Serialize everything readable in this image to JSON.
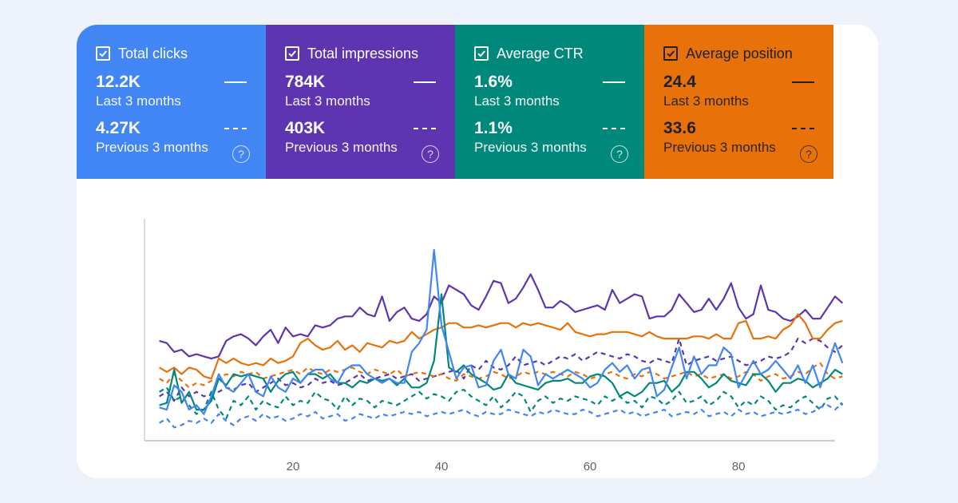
{
  "metrics": [
    {
      "id": "clicks",
      "label": "Total clicks",
      "color": "#4285f4",
      "current_value": "12.2K",
      "current_period": "Last 3 months",
      "previous_value": "4.27K",
      "previous_period": "Previous 3 months",
      "checked": true
    },
    {
      "id": "impressions",
      "label": "Total impressions",
      "color": "#5e35b1",
      "current_value": "784K",
      "current_period": "Last 3 months",
      "previous_value": "403K",
      "previous_period": "Previous 3 months",
      "checked": true
    },
    {
      "id": "ctr",
      "label": "Average CTR",
      "color": "#00897b",
      "current_value": "1.6%",
      "current_period": "Last 3 months",
      "previous_value": "1.1%",
      "previous_period": "Previous 3 months",
      "checked": true
    },
    {
      "id": "position",
      "label": "Average position",
      "color": "#e8710a",
      "current_value": "24.4",
      "current_period": "Last 3 months",
      "previous_value": "33.6",
      "previous_period": "Previous 3 months",
      "checked": true
    }
  ],
  "help_glyph": "?",
  "chart_data": {
    "type": "line",
    "xlim": [
      0,
      93
    ],
    "ylim": [
      0,
      100
    ],
    "x_ticks": [
      20,
      40,
      60,
      80
    ],
    "series": [
      {
        "name": "Total impressions (Last 3 months)",
        "color": "#5e35b1",
        "dash": false,
        "values": [
          45,
          44,
          40,
          41,
          38,
          39,
          38,
          37,
          38,
          45,
          47,
          48,
          46,
          43,
          47,
          50,
          44,
          51,
          47,
          48,
          47,
          52,
          51,
          52,
          55,
          56,
          56,
          60,
          57,
          56,
          65,
          54,
          58,
          60,
          55,
          54,
          57,
          65,
          62,
          70,
          68,
          66,
          61,
          59,
          65,
          72,
          71,
          62,
          64,
          69,
          75,
          68,
          60,
          60,
          63,
          61,
          58,
          59,
          60,
          61,
          59,
          68,
          62,
          64,
          66,
          65,
          55,
          56,
          56,
          59,
          66,
          62,
          58,
          59,
          64,
          59,
          64,
          71,
          60,
          55,
          57,
          70,
          59,
          58,
          55,
          54,
          56,
          59,
          55,
          55,
          60,
          65,
          62
        ]
      },
      {
        "name": "Average position (Last 3 months)",
        "color": "#e8710a",
        "dash": false,
        "values": [
          33,
          31,
          33,
          30,
          33,
          32,
          29,
          28,
          37,
          35,
          37,
          35,
          34,
          35,
          34,
          37,
          35,
          36,
          38,
          44,
          46,
          43,
          41,
          42,
          45,
          41,
          43,
          40,
          44,
          43,
          42,
          45,
          44,
          45,
          49,
          46,
          48,
          50,
          51,
          53,
          53,
          51,
          51,
          52,
          51,
          52,
          53,
          53,
          51,
          53,
          52,
          53,
          52,
          51,
          50,
          53,
          49,
          48,
          47,
          48,
          48,
          49,
          49,
          49,
          48,
          47,
          49,
          47,
          46,
          46,
          46,
          46,
          47,
          47,
          46,
          48,
          46,
          46,
          53,
          54,
          46,
          46,
          47,
          46,
          50,
          52,
          57,
          53,
          46,
          46,
          50,
          53,
          54
        ]
      },
      {
        "name": "Average CTR (Last 3 months)",
        "color": "#00897b",
        "dash": false,
        "values": [
          16,
          17,
          32,
          17,
          22,
          14,
          14,
          18,
          28,
          25,
          30,
          29,
          30,
          29,
          28,
          22,
          27,
          30,
          31,
          26,
          30,
          30,
          28,
          30,
          26,
          26,
          24,
          27,
          26,
          28,
          27,
          28,
          25,
          28,
          24,
          24,
          26,
          36,
          66,
          33,
          31,
          34,
          30,
          28,
          26,
          23,
          24,
          30,
          26,
          25,
          24,
          23,
          26,
          27,
          27,
          28,
          26,
          26,
          29,
          30,
          29,
          26,
          20,
          22,
          20,
          22,
          26,
          26,
          27,
          22,
          25,
          31,
          31,
          28,
          24,
          26,
          30,
          27,
          26,
          25,
          30,
          30,
          27,
          22,
          26,
          26,
          28,
          27,
          24,
          26,
          28,
          32,
          30
        ]
      },
      {
        "name": "Total clicks (Last 3 months)",
        "color": "#4285f4",
        "dash": false,
        "values": [
          15,
          14,
          25,
          22,
          14,
          16,
          12,
          20,
          30,
          24,
          22,
          26,
          30,
          22,
          20,
          29,
          24,
          22,
          28,
          26,
          30,
          32,
          32,
          28,
          26,
          32,
          34,
          34,
          30,
          28,
          26,
          28,
          26,
          26,
          40,
          44,
          50,
          86,
          52,
          40,
          28,
          33,
          34,
          24,
          25,
          36,
          41,
          30,
          28,
          41,
          38,
          25,
          30,
          28,
          30,
          32,
          30,
          28,
          24,
          26,
          32,
          35,
          31,
          34,
          28,
          32,
          33,
          20,
          23,
          33,
          42,
          28,
          38,
          30,
          34,
          34,
          42,
          39,
          24,
          30,
          36,
          30,
          32,
          36,
          32,
          28,
          34,
          26,
          34,
          24,
          34,
          44,
          35
        ]
      },
      {
        "name": "Total impressions (Previous 3 months)",
        "color": "#5e35b1",
        "dash": true,
        "values": [
          20,
          22,
          18,
          24,
          20,
          22,
          20,
          21,
          22,
          24,
          23,
          25,
          26,
          22,
          24,
          26,
          28,
          25,
          26,
          24,
          25,
          28,
          26,
          27,
          25,
          26,
          28,
          30,
          27,
          28,
          29,
          30,
          28,
          29,
          30,
          27,
          28,
          29,
          30,
          31,
          32,
          28,
          34,
          32,
          36,
          33,
          32,
          34,
          38,
          34,
          35,
          36,
          34,
          36,
          38,
          37,
          39,
          36,
          38,
          40,
          39,
          38,
          37,
          39,
          38,
          36,
          35,
          37,
          36,
          35,
          46,
          34,
          36,
          37,
          38,
          36,
          37,
          38,
          36,
          34,
          35,
          36,
          38,
          37,
          38,
          40,
          46,
          44,
          46,
          45,
          42,
          40,
          43
        ]
      },
      {
        "name": "Average position (Previous 3 months)",
        "color": "#e8710a",
        "dash": true,
        "values": [
          28,
          26,
          30,
          27,
          24,
          26,
          25,
          27,
          28,
          30,
          29,
          31,
          30,
          31,
          28,
          29,
          30,
          31,
          32,
          30,
          33,
          31,
          30,
          32,
          31,
          32,
          33,
          31,
          30,
          32,
          31,
          30,
          32,
          29,
          30,
          31,
          30,
          29,
          30,
          28,
          27,
          30,
          29,
          28,
          29,
          31,
          30,
          28,
          29,
          31,
          30,
          31,
          30,
          31,
          30,
          29,
          31,
          30,
          28,
          29,
          30,
          31,
          29,
          28,
          30,
          29,
          31,
          30,
          28,
          29,
          30,
          31,
          29,
          30,
          28,
          29,
          30,
          28,
          29,
          31,
          30,
          27,
          29,
          30,
          28,
          29,
          31,
          30,
          33,
          35,
          30,
          28,
          29
        ]
      },
      {
        "name": "Average CTR (Previous 3 months)",
        "color": "#00897b",
        "dash": true,
        "values": [
          22,
          24,
          18,
          20,
          16,
          12,
          14,
          22,
          14,
          10,
          18,
          16,
          20,
          14,
          18,
          16,
          15,
          20,
          16,
          18,
          17,
          22,
          19,
          18,
          14,
          20,
          16,
          19,
          18,
          15,
          18,
          17,
          16,
          18,
          20,
          22,
          19,
          21,
          20,
          18,
          22,
          23,
          20,
          18,
          16,
          20,
          15,
          18,
          22,
          20,
          13,
          18,
          20,
          17,
          19,
          18,
          20,
          19,
          18,
          16,
          20,
          18,
          20,
          17,
          18,
          15,
          20,
          19,
          16,
          18,
          22,
          17,
          18,
          20,
          16,
          18,
          22,
          20,
          15,
          18,
          16,
          20,
          18,
          14,
          16,
          15,
          18,
          20,
          17,
          14,
          19,
          20,
          16
        ]
      },
      {
        "name": "Total clicks (Previous 3 months)",
        "color": "#4285f4",
        "dash": true,
        "values": [
          8,
          10,
          6,
          7,
          9,
          8,
          10,
          8,
          12,
          9,
          7,
          10,
          11,
          9,
          12,
          10,
          11,
          9,
          10,
          12,
          11,
          13,
          10,
          11,
          12,
          9,
          10,
          12,
          11,
          10,
          12,
          11,
          12,
          13,
          12,
          13,
          11,
          12,
          13,
          12,
          13,
          14,
          12,
          11,
          13,
          12,
          12,
          14,
          13,
          12,
          11,
          13,
          12,
          14,
          13,
          12,
          12,
          14,
          13,
          11,
          12,
          13,
          14,
          12,
          13,
          11,
          12,
          13,
          14,
          11,
          12,
          13,
          12,
          14,
          11,
          12,
          13,
          11,
          14,
          12,
          13,
          11,
          12,
          13,
          12,
          13,
          14,
          12,
          13,
          15,
          16,
          14,
          17
        ]
      }
    ]
  }
}
